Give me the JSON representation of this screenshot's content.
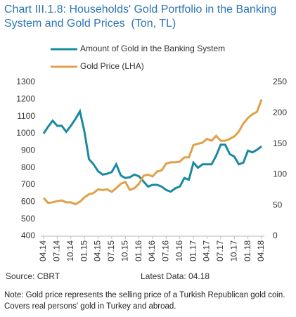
{
  "chart_data": {
    "type": "line",
    "title": "Chart III.1.8: Households' Gold Portfolio in the Banking System and Gold Prices",
    "subtitle": "(Ton, TL)",
    "categories": [
      "04.14",
      null,
      null,
      "07.14",
      null,
      null,
      "10.14",
      null,
      null,
      "01.15",
      null,
      null,
      "04.15",
      null,
      null,
      "07.15",
      null,
      null,
      "10.15",
      null,
      null,
      "01.16",
      null,
      null,
      "04.16",
      null,
      null,
      "07.16",
      null,
      null,
      "10.16",
      null,
      null,
      "01.17",
      null,
      null,
      "04.17",
      null,
      null,
      "07.17",
      null,
      null,
      "10.17",
      null,
      null,
      "01.18",
      null,
      null,
      "04.18"
    ],
    "series": [
      {
        "name": "Amount of Gold in the Banking System",
        "color": "#1a8aa0",
        "axis": "y",
        "values": [
          1000,
          1040,
          1075,
          1045,
          1045,
          1010,
          1045,
          1085,
          1130,
          1010,
          850,
          820,
          780,
          760,
          765,
          775,
          820,
          755,
          740,
          745,
          760,
          750,
          720,
          690,
          700,
          700,
          690,
          670,
          660,
          680,
          690,
          740,
          730,
          830,
          800,
          820,
          820,
          820,
          870,
          935,
          935,
          880,
          865,
          820,
          830,
          900,
          890,
          905,
          925
        ]
      },
      {
        "name": "Gold Price (LHA)",
        "color": "#e0a04a",
        "axis": "y2",
        "values": [
          62,
          54,
          55,
          57,
          58,
          55,
          55,
          52,
          56,
          63,
          68,
          70,
          76,
          75,
          76,
          72,
          78,
          85,
          88,
          75,
          78,
          85,
          98,
          100,
          97,
          105,
          107,
          118,
          120,
          120,
          121,
          128,
          128,
          148,
          150,
          152,
          158,
          155,
          163,
          155,
          155,
          158,
          162,
          170,
          183,
          192,
          198,
          202,
          222
        ]
      }
    ],
    "ylim": [
      400,
      1300
    ],
    "yticks": [
      400,
      500,
      600,
      700,
      800,
      900,
      1000,
      1100,
      1200,
      1300
    ],
    "y2lim": [
      0,
      250
    ],
    "y2ticks": [
      0,
      50,
      100,
      150,
      200,
      250
    ],
    "grid": false,
    "source": "Source: CBRT",
    "latest": "Latest Data: 04.18",
    "note": "Note: Gold price represents the selling price of a Turkish Republican gold coin. Covers real persons' gold in Turkey and abroad."
  }
}
